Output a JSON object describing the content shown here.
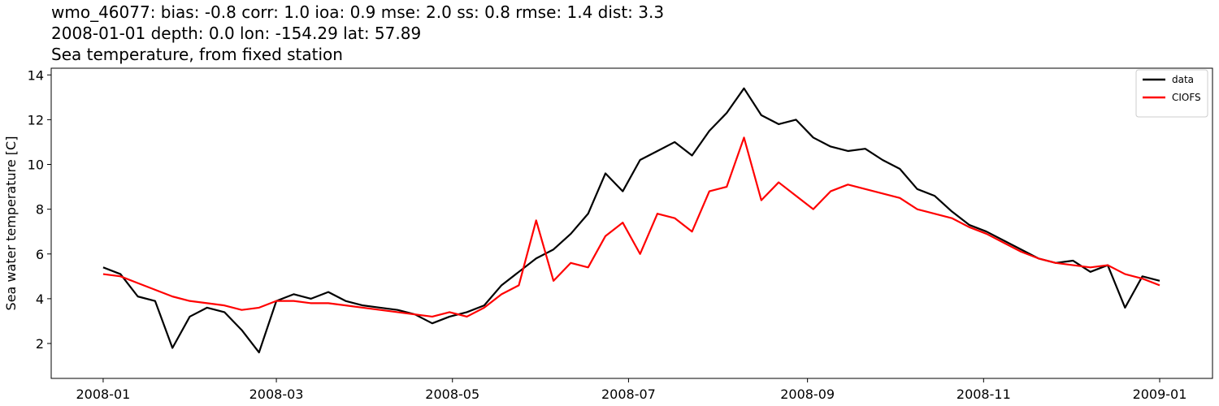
{
  "chart_data": {
    "type": "line",
    "title": [
      "wmo_46077: bias: -0.8  corr: 1.0  ioa: 0.9  mse: 2.0  ss: 0.8  rmse: 1.4  dist: 3.3",
      "2008-01-01 depth: 0.0 lon: -154.29 lat: 57.89",
      "Sea temperature, from fixed station"
    ],
    "y_label": "Sea water temperature [C]",
    "x": [
      0,
      6,
      12,
      18,
      24,
      30,
      36,
      42,
      48,
      54,
      60,
      66,
      72,
      78,
      84,
      90,
      96,
      102,
      108,
      114,
      120,
      126,
      132,
      138,
      144,
      150,
      156,
      162,
      168,
      174,
      180,
      186,
      192,
      198,
      204,
      210,
      216,
      222,
      228,
      234,
      240,
      246,
      252,
      258,
      264,
      270,
      276,
      282,
      288,
      294,
      300,
      306,
      312,
      318,
      324,
      330,
      336,
      342,
      348,
      354,
      360,
      366
    ],
    "series": [
      {
        "name": "data",
        "color": "#000000",
        "values": [
          5.4,
          5.1,
          4.1,
          3.9,
          1.8,
          3.2,
          3.6,
          3.4,
          2.6,
          1.6,
          3.9,
          4.2,
          4.0,
          4.3,
          3.9,
          3.7,
          3.6,
          3.5,
          3.3,
          2.9,
          3.2,
          3.4,
          3.7,
          4.6,
          5.2,
          5.8,
          6.2,
          6.9,
          7.8,
          9.6,
          8.8,
          10.2,
          10.6,
          11.0,
          10.4,
          11.5,
          12.3,
          13.4,
          12.2,
          11.8,
          12.0,
          11.2,
          10.8,
          10.6,
          10.7,
          10.2,
          9.8,
          8.9,
          8.6,
          7.9,
          7.3,
          7.0,
          6.6,
          6.2,
          5.8,
          5.6,
          5.7,
          5.2,
          5.5,
          3.6,
          5.0,
          4.8
        ]
      },
      {
        "name": "CIOFS",
        "color": "#ff0000",
        "values": [
          5.1,
          5.0,
          4.7,
          4.4,
          4.1,
          3.9,
          3.8,
          3.7,
          3.5,
          3.6,
          3.9,
          3.9,
          3.8,
          3.8,
          3.7,
          3.6,
          3.5,
          3.4,
          3.3,
          3.2,
          3.4,
          3.2,
          3.6,
          4.2,
          4.6,
          7.5,
          4.8,
          5.6,
          5.4,
          6.8,
          7.4,
          6.0,
          7.8,
          7.6,
          7.0,
          8.8,
          9.0,
          11.2,
          8.4,
          9.2,
          8.6,
          8.0,
          8.8,
          9.1,
          8.9,
          8.7,
          8.5,
          8.0,
          7.8,
          7.6,
          7.2,
          6.9,
          6.5,
          6.1,
          5.8,
          5.6,
          5.5,
          5.4,
          5.5,
          5.1,
          4.9,
          4.6
        ]
      }
    ],
    "xlim": [
      -18,
      384.3
    ],
    "xticks": [
      {
        "value": 0,
        "label": "2008-01"
      },
      {
        "value": 60,
        "label": "2008-03"
      },
      {
        "value": 121,
        "label": "2008-05"
      },
      {
        "value": 182,
        "label": "2008-07"
      },
      {
        "value": 244,
        "label": "2008-09"
      },
      {
        "value": 305,
        "label": "2008-11"
      },
      {
        "value": 366,
        "label": "2009-01"
      }
    ],
    "ylim": [
      0.44,
      14.3
    ],
    "yticks": [
      2,
      4,
      6,
      8,
      10,
      12,
      14
    ],
    "grid": false,
    "legend": "upper right"
  }
}
